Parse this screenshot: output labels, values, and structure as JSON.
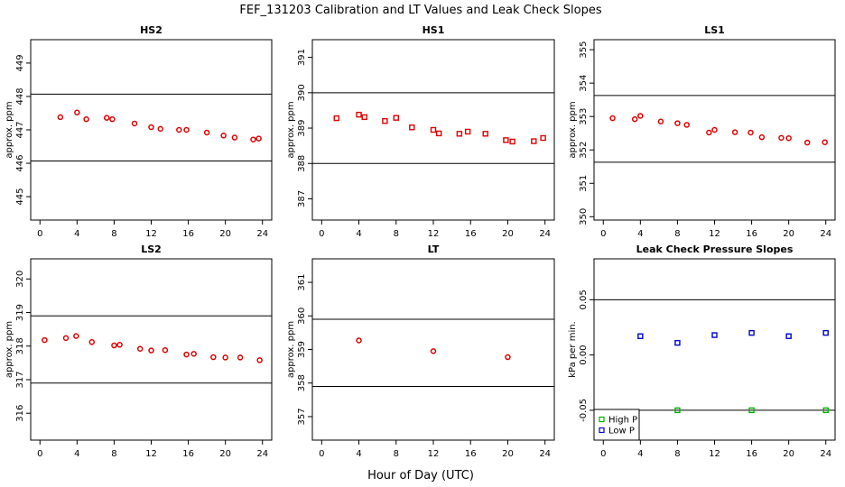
{
  "figure": {
    "title": "FEF_131203  Calibration and LT Values and Leak Check Slopes",
    "xlabel": "Hour of Day (UTC)"
  },
  "colors": {
    "red": "#e00000",
    "green": "#00b000",
    "blue": "#0000cc",
    "ref": "#000000"
  },
  "chart_data": [
    {
      "type": "scatter",
      "title": "HS2",
      "ylabel": "approx. ppm",
      "xlim": [
        -1,
        25
      ],
      "ylim": [
        444.3,
        449.7
      ],
      "xticks": [
        0,
        4,
        8,
        12,
        16,
        20,
        24
      ],
      "yticks": [
        445,
        446,
        447,
        448,
        449
      ],
      "reference_lines": [
        446.07,
        448.07
      ],
      "series": [
        {
          "color": "#e00000",
          "marker": "circle",
          "points": [
            [
              2.2,
              447.38
            ],
            [
              4.0,
              447.52
            ],
            [
              5.0,
              447.32
            ],
            [
              7.2,
              447.36
            ],
            [
              7.8,
              447.32
            ],
            [
              10.2,
              447.19
            ],
            [
              12.0,
              447.08
            ],
            [
              13.0,
              447.03
            ],
            [
              15.0,
              447.0
            ],
            [
              15.8,
              447.0
            ],
            [
              18.0,
              446.92
            ],
            [
              19.8,
              446.83
            ],
            [
              21.0,
              446.77
            ],
            [
              23.0,
              446.71
            ],
            [
              23.6,
              446.74
            ]
          ]
        }
      ]
    },
    {
      "type": "scatter",
      "title": "HS1",
      "ylabel": "approx. ppm",
      "xlim": [
        -1,
        25
      ],
      "ylim": [
        386.4,
        391.5
      ],
      "xticks": [
        0,
        4,
        8,
        12,
        16,
        20,
        24
      ],
      "yticks": [
        387,
        388,
        389,
        390,
        391
      ],
      "reference_lines": [
        388.0,
        390.0
      ],
      "series": [
        {
          "color": "#e00000",
          "marker": "square",
          "points": [
            [
              1.6,
              389.28
            ],
            [
              4.0,
              389.38
            ],
            [
              4.6,
              389.31
            ],
            [
              6.8,
              389.2
            ],
            [
              8.0,
              389.29
            ],
            [
              9.7,
              389.02
            ],
            [
              12.0,
              388.95
            ],
            [
              12.6,
              388.85
            ],
            [
              14.8,
              388.84
            ],
            [
              15.7,
              388.9
            ],
            [
              17.6,
              388.84
            ],
            [
              19.8,
              388.66
            ],
            [
              20.5,
              388.62
            ],
            [
              22.8,
              388.63
            ],
            [
              23.8,
              388.72
            ]
          ]
        }
      ]
    },
    {
      "type": "scatter",
      "title": "LS1",
      "ylabel": "approx. ppm",
      "xlim": [
        -1,
        25
      ],
      "ylim": [
        349.9,
        355.3
      ],
      "xticks": [
        0,
        4,
        8,
        12,
        16,
        20,
        24
      ],
      "yticks": [
        350,
        351,
        352,
        353,
        354,
        355
      ],
      "reference_lines": [
        351.63,
        353.63
      ],
      "series": [
        {
          "color": "#e00000",
          "marker": "circle",
          "points": [
            [
              1.0,
              352.95
            ],
            [
              3.4,
              352.92
            ],
            [
              4.0,
              353.02
            ],
            [
              6.2,
              352.85
            ],
            [
              8.0,
              352.8
            ],
            [
              9.0,
              352.75
            ],
            [
              11.4,
              352.52
            ],
            [
              12.0,
              352.6
            ],
            [
              14.2,
              352.53
            ],
            [
              15.9,
              352.52
            ],
            [
              17.1,
              352.38
            ],
            [
              19.2,
              352.36
            ],
            [
              20.0,
              352.35
            ],
            [
              22.0,
              352.22
            ],
            [
              23.9,
              352.23
            ]
          ]
        }
      ]
    },
    {
      "type": "scatter",
      "title": "LS2",
      "ylabel": "approx. ppm",
      "xlim": [
        -1,
        25
      ],
      "ylim": [
        315.2,
        320.6
      ],
      "xticks": [
        0,
        4,
        8,
        12,
        16,
        20,
        24
      ],
      "yticks": [
        316,
        317,
        318,
        319,
        320
      ],
      "reference_lines": [
        316.9,
        318.9
      ],
      "series": [
        {
          "color": "#e00000",
          "marker": "circle",
          "points": [
            [
              0.5,
              318.18
            ],
            [
              2.8,
              318.24
            ],
            [
              3.9,
              318.3
            ],
            [
              5.6,
              318.12
            ],
            [
              8.0,
              318.02
            ],
            [
              8.6,
              318.04
            ],
            [
              10.8,
              317.92
            ],
            [
              12.0,
              317.87
            ],
            [
              13.5,
              317.88
            ],
            [
              15.8,
              317.75
            ],
            [
              16.6,
              317.77
            ],
            [
              18.7,
              317.67
            ],
            [
              20.0,
              317.66
            ],
            [
              21.6,
              317.66
            ],
            [
              23.7,
              317.58
            ]
          ]
        }
      ]
    },
    {
      "type": "scatter",
      "title": "LT",
      "ylabel": "approx. ppm",
      "xlim": [
        -1,
        25
      ],
      "ylim": [
        356.3,
        361.7
      ],
      "xticks": [
        0,
        4,
        8,
        12,
        16,
        20,
        24
      ],
      "yticks": [
        357,
        358,
        359,
        360,
        361
      ],
      "reference_lines": [
        357.9,
        359.9
      ],
      "series": [
        {
          "color": "#e00000",
          "marker": "circle",
          "points": [
            [
              4.0,
              359.27
            ],
            [
              12.0,
              358.95
            ],
            [
              20.0,
              358.77
            ]
          ]
        }
      ]
    },
    {
      "type": "scatter",
      "title": "Leak Check Pressure Slopes",
      "ylabel": "kPa per min.",
      "xlim": [
        -1,
        25
      ],
      "ylim": [
        -0.077,
        0.087
      ],
      "xticks": [
        0,
        4,
        8,
        12,
        16,
        20,
        24
      ],
      "yticks": [
        -0.05,
        0.0,
        0.05
      ],
      "ytick_labels": [
        "-0.05",
        "0.00",
        "0.05"
      ],
      "reference_lines": [
        -0.05,
        0.05
      ],
      "legend": {
        "position": "bottom-left",
        "entries": [
          "High P",
          "Low P"
        ]
      },
      "series": [
        {
          "name": "High P",
          "color": "#00b000",
          "marker": "square",
          "points": [
            [
              8.0,
              -0.05
            ],
            [
              16.0,
              -0.05
            ],
            [
              24.0,
              -0.05
            ]
          ]
        },
        {
          "name": "Low P",
          "color": "#0000cc",
          "marker": "square",
          "points": [
            [
              4.0,
              0.017
            ],
            [
              8.0,
              0.011
            ],
            [
              12.0,
              0.018
            ],
            [
              16.0,
              0.02
            ],
            [
              20.0,
              0.017
            ],
            [
              24.0,
              0.02
            ]
          ]
        }
      ]
    }
  ]
}
